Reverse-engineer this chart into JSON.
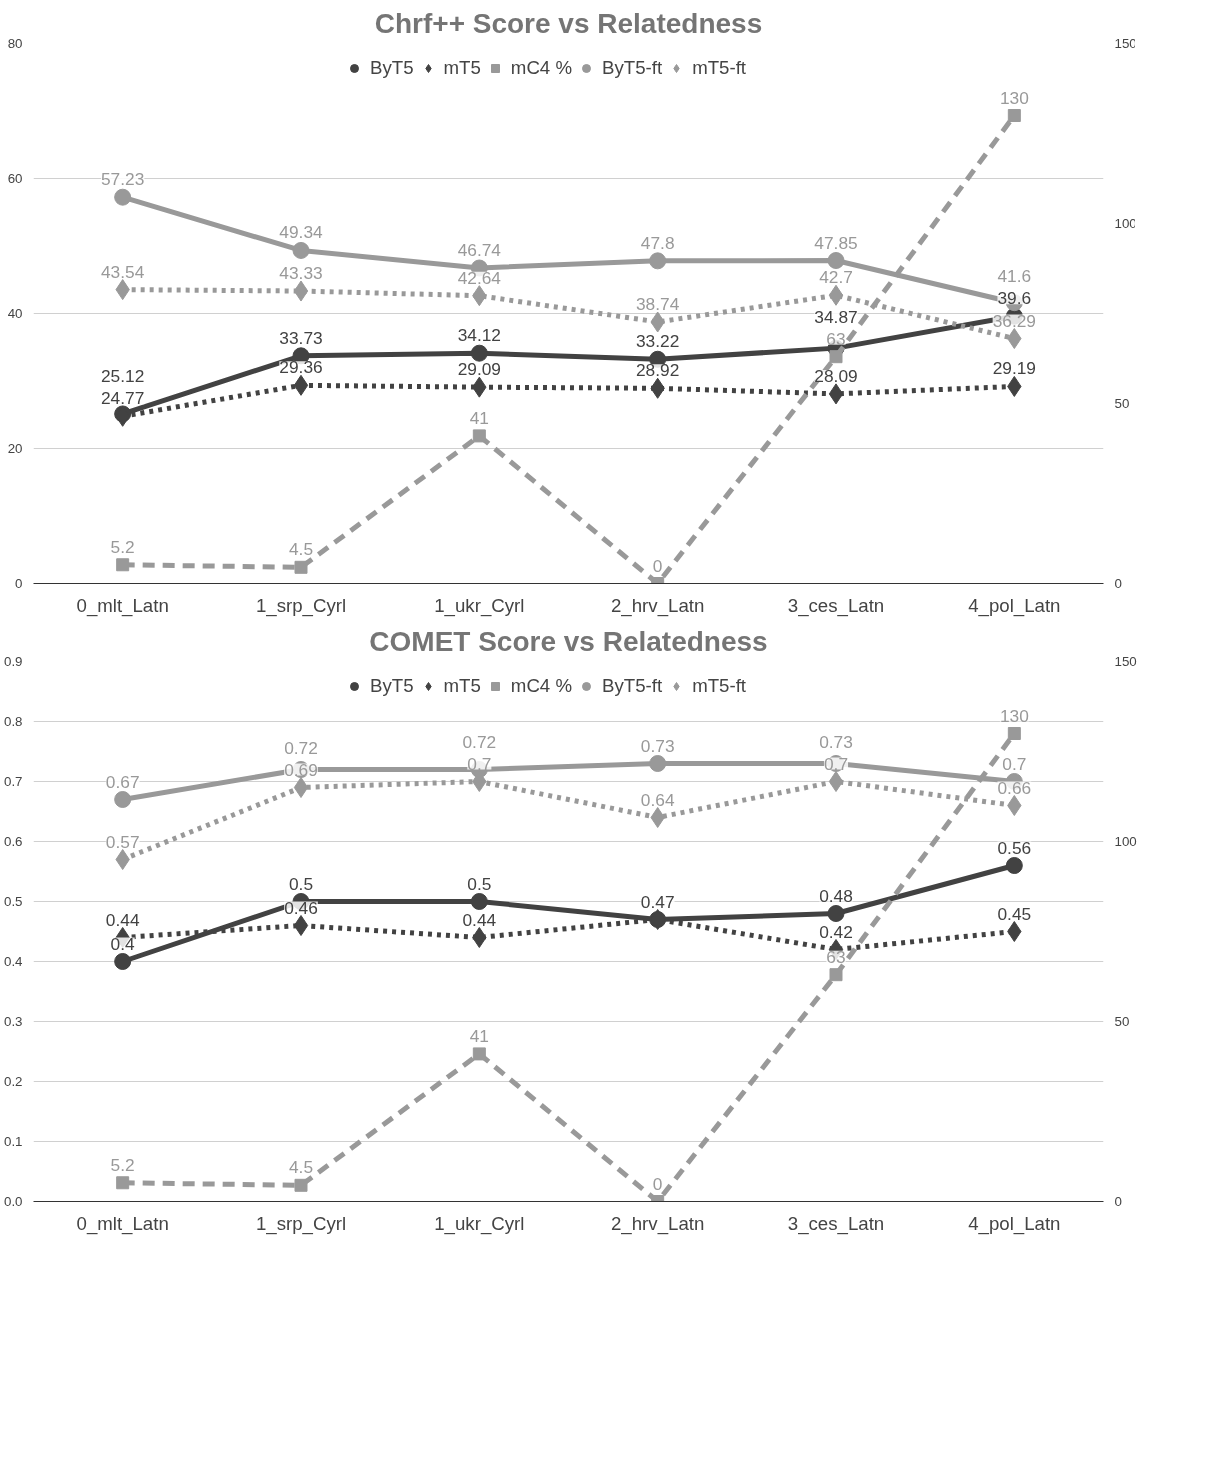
{
  "chart_data": [
    {
      "type": "line",
      "title": "Chrf++ Score vs Relatedness",
      "categories": [
        "0_mlt_Latn",
        "1_srp_Cyrl",
        "1_ukr_Cyrl",
        "2_hrv_Latn",
        "3_ces_Latn",
        "4_pol_Latn"
      ],
      "series": [
        {
          "name": "ByT5",
          "color": "#424242",
          "marker": "circle",
          "line_style": "solid",
          "values": [
            25.12,
            33.73,
            34.12,
            33.22,
            34.87,
            39.6
          ]
        },
        {
          "name": "mT5",
          "color": "#424242",
          "marker": "diamond",
          "line_style": "dotted",
          "values": [
            24.77,
            29.36,
            29.09,
            28.92,
            28.09,
            29.19
          ]
        },
        {
          "name": "mC4 %",
          "color": "#999999",
          "marker": "square",
          "line_style": "dashed",
          "axis": "y2",
          "values": [
            5.2,
            4.5,
            41,
            0,
            63,
            130
          ]
        },
        {
          "name": "ByT5-ft",
          "color": "#999999",
          "marker": "circle",
          "line_style": "solid",
          "values": [
            57.23,
            49.34,
            46.74,
            47.8,
            47.85,
            41.6
          ]
        },
        {
          "name": "mT5-ft",
          "color": "#999999",
          "marker": "diamond",
          "line_style": "dotted",
          "values": [
            43.54,
            43.33,
            42.64,
            38.74,
            42.7,
            36.29
          ]
        }
      ],
      "ylim": [
        0,
        80
      ],
      "yticks": [
        0,
        20,
        40,
        60,
        80
      ],
      "y2lim": [
        0,
        150
      ],
      "y2ticks": [
        0,
        50,
        100,
        150
      ],
      "grid": "y",
      "legend": "top",
      "data_labels": true
    },
    {
      "type": "line",
      "title": "COMET Score vs Relatedness",
      "categories": [
        "0_mlt_Latn",
        "1_srp_Cyrl",
        "1_ukr_Cyrl",
        "2_hrv_Latn",
        "3_ces_Latn",
        "4_pol_Latn"
      ],
      "series": [
        {
          "name": "ByT5",
          "color": "#424242",
          "marker": "circle",
          "line_style": "solid",
          "values": [
            0.4,
            0.5,
            0.5,
            0.47,
            0.48,
            0.56
          ]
        },
        {
          "name": "mT5",
          "color": "#424242",
          "marker": "diamond",
          "line_style": "dotted",
          "values": [
            0.44,
            0.46,
            0.44,
            0.47,
            0.42,
            0.45
          ],
          "value_labels": [
            "0.44",
            "0.46",
            "0.44",
            null,
            "0.42",
            "0.45"
          ]
        },
        {
          "name": "mC4 %",
          "color": "#999999",
          "marker": "square",
          "line_style": "dashed",
          "axis": "y2",
          "values": [
            5.2,
            4.5,
            41,
            0,
            63,
            130
          ]
        },
        {
          "name": "ByT5-ft",
          "color": "#999999",
          "marker": "circle",
          "line_style": "solid",
          "values": [
            0.67,
            0.72,
            0.72,
            0.73,
            0.73,
            0.7
          ]
        },
        {
          "name": "mT5-ft",
          "color": "#999999",
          "marker": "diamond",
          "line_style": "dotted",
          "values": [
            0.57,
            0.69,
            0.7,
            0.64,
            0.7,
            0.66
          ]
        }
      ],
      "ylim": [
        0,
        0.9
      ],
      "yticks": [
        {
          "value": 0,
          "label": "0.0"
        },
        0.1,
        0.2,
        0.3,
        0.4,
        0.5,
        0.6,
        0.7,
        0.8,
        0.9
      ],
      "y2lim": [
        0,
        150
      ],
      "y2ticks": [
        0,
        50,
        100,
        150
      ],
      "grid": "y",
      "legend": "top",
      "data_labels": true
    }
  ]
}
